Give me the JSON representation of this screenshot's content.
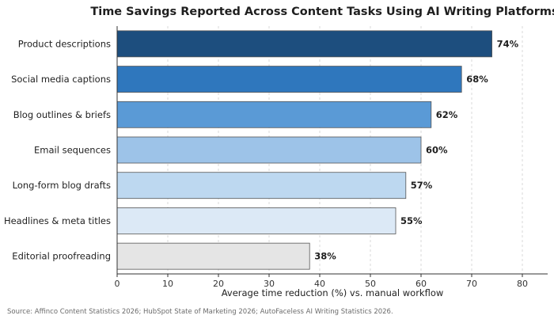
{
  "chart_data": {
    "type": "bar",
    "orientation": "horizontal",
    "title": "Time Savings Reported Across Content Tasks Using AI Writing Platforms",
    "xlabel": "Average time reduction (%) vs. manual workflow",
    "ylabel": "",
    "xlim": [
      0,
      85
    ],
    "xticks": [
      0,
      10,
      20,
      30,
      40,
      50,
      60,
      70,
      80
    ],
    "grid": "vertical dashed",
    "categories": [
      "Product descriptions",
      "Social media captions",
      "Blog outlines & briefs",
      "Email sequences",
      "Long-form blog drafts",
      "Headlines & meta titles",
      "Editorial proofreading"
    ],
    "values": [
      74,
      68,
      62,
      60,
      57,
      55,
      38
    ],
    "value_labels": [
      "74%",
      "68%",
      "62%",
      "60%",
      "57%",
      "55%",
      "38%"
    ],
    "colors": [
      "#1d4e7e",
      "#2f77bd",
      "#5a9ad6",
      "#9dc3e8",
      "#bdd8f0",
      "#dce9f6",
      "#e5e5e5"
    ]
  },
  "source": "Source: Affinco Content Statistics 2026; HubSpot State of Marketing 2026; AutoFaceless AI Writing Statistics 2026."
}
